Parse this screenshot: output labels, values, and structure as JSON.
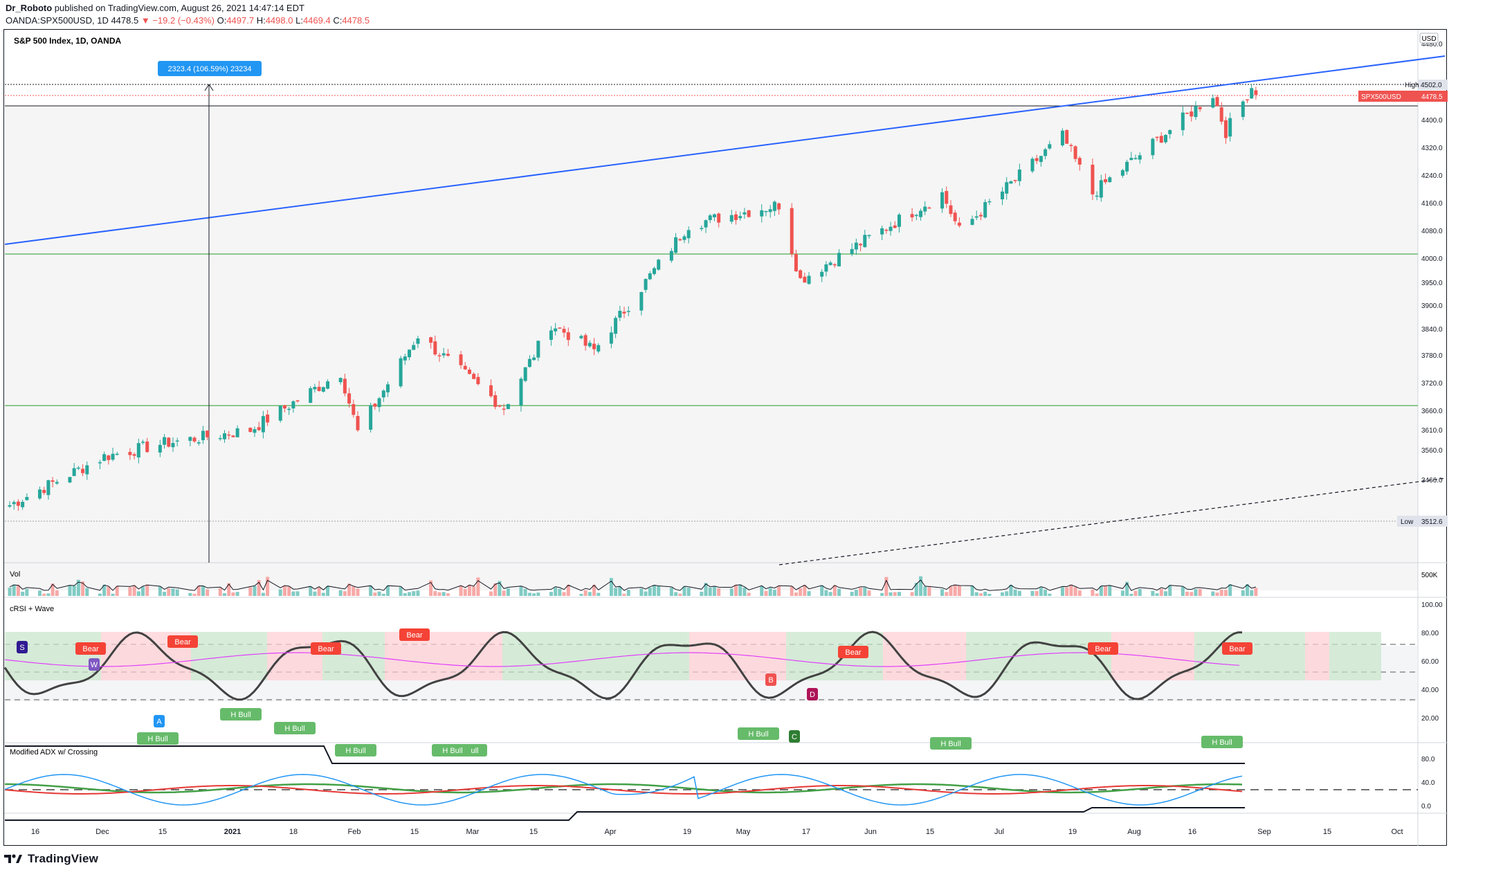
{
  "header": {
    "author": "Dr_Roboto",
    "published": "published on TradingView.com, August 26, 2021 14:47:14 EDT",
    "symbol_line": "OANDA:SPX500USD, 1D 4478.5",
    "change": "▼ −19.2 (−0.43%)",
    "ohlc": {
      "O": "4497.7",
      "H": "4498.0",
      "L": "4469.4",
      "C": "4478.5"
    }
  },
  "chart": {
    "title": "S&P 500 Index, 1D, OANDA",
    "currency": "USD",
    "measure_label": "2323.4 (106.59%) 23234",
    "price_ticks": [
      "4480.0",
      "4400.0",
      "4320.0",
      "4240.0",
      "4160.0",
      "4080.0",
      "4000.0",
      "3950.0",
      "3900.0",
      "3840.0",
      "3780.0",
      "3720.0",
      "3660.0",
      "3610.0",
      "3560.0",
      "3466.0"
    ],
    "high_label": {
      "name": "High",
      "value": "4502.0"
    },
    "low_label": {
      "name": "Low",
      "value": "3512.6"
    },
    "symbol_tag": {
      "name": "SPX500USD",
      "value": "4478.5"
    },
    "vol_label": "Vol",
    "vol_tick": "500K",
    "rsi_label": "cRSI + Wave",
    "rsi_ticks": [
      "100.00",
      "80.00",
      "60.00",
      "40.00",
      "20.00"
    ],
    "adx_label": "Modified ADX w/ Crossing",
    "adx_ticks": [
      "80.0",
      "40.0",
      "0.0"
    ],
    "x_ticks": [
      "16",
      "Dec",
      "15",
      "2021",
      "18",
      "Feb",
      "15",
      "Mar",
      "15",
      "Apr",
      "19",
      "May",
      "17",
      "Jun",
      "15",
      "Jul",
      "19",
      "Aug",
      "16",
      "Sep",
      "15",
      "Oct"
    ],
    "signals": [
      {
        "text": "Bear",
        "type": "bear"
      },
      {
        "text": "Bear",
        "type": "bear"
      },
      {
        "text": "Bear",
        "type": "bear"
      },
      {
        "text": "Bear",
        "type": "bear"
      },
      {
        "text": "Bear",
        "type": "bear"
      },
      {
        "text": "Bear",
        "type": "bear"
      },
      {
        "text": "Bear",
        "type": "bear"
      },
      {
        "text": "H Bull",
        "type": "hbull"
      },
      {
        "text": "H Bull",
        "type": "hbull"
      },
      {
        "text": "H Bull",
        "type": "hbull"
      },
      {
        "text": "H Bull",
        "type": "hbull"
      },
      {
        "text": "H Bull",
        "type": "hbull"
      },
      {
        "text": "ull",
        "type": "hbull"
      },
      {
        "text": "H Bull",
        "type": "hbull"
      },
      {
        "text": "H Bull",
        "type": "hbull"
      },
      {
        "text": "H Bull",
        "type": "hbull"
      },
      {
        "text": "S",
        "type": "s"
      },
      {
        "text": "W",
        "type": "w"
      },
      {
        "text": "A",
        "type": "a"
      },
      {
        "text": "B",
        "type": "b"
      },
      {
        "text": "C",
        "type": "c"
      },
      {
        "text": "D",
        "type": "d"
      }
    ],
    "colors": {
      "up": "#26a69a",
      "down": "#ef5350",
      "trend": "#2962ff",
      "support": "#4caf50",
      "bear": "#f44336",
      "hbull": "#66bb6a",
      "s": "#311b92",
      "w": "#7e57c2",
      "a": "#2196f3"
    }
  },
  "chart_data": {
    "type": "candlestick",
    "title": "S&P 500 Index, 1D, OANDA",
    "ylim": [
      3466,
      4502
    ],
    "high": 4502.0,
    "low": 3512.6,
    "last": 4478.5,
    "horizontal_levels": [
      4502.0,
      4478.5,
      4450.0,
      4085.0,
      3750.0,
      3512.6
    ],
    "series": [
      {
        "name": "close",
        "start": "2020-11-09",
        "end": "2021-08-26",
        "key_points": [
          {
            "date": "2020-11-09",
            "value": 3550
          },
          {
            "date": "2020-12-01",
            "value": 3660
          },
          {
            "date": "2020-12-15",
            "value": 3690
          },
          {
            "date": "2021-01-04",
            "value": 3720
          },
          {
            "date": "2021-01-25",
            "value": 3850
          },
          {
            "date": "2021-01-29",
            "value": 3715
          },
          {
            "date": "2021-02-12",
            "value": 3935
          },
          {
            "date": "2021-03-04",
            "value": 3770
          },
          {
            "date": "2021-03-15",
            "value": 3960
          },
          {
            "date": "2021-03-25",
            "value": 3900
          },
          {
            "date": "2021-04-16",
            "value": 4185
          },
          {
            "date": "2021-05-07",
            "value": 4230
          },
          {
            "date": "2021-05-12",
            "value": 4060
          },
          {
            "date": "2021-06-14",
            "value": 4255
          },
          {
            "date": "2021-06-18",
            "value": 4170
          },
          {
            "date": "2021-07-12",
            "value": 4385
          },
          {
            "date": "2021-07-19",
            "value": 4255
          },
          {
            "date": "2021-08-16",
            "value": 4480
          },
          {
            "date": "2021-08-19",
            "value": 4395
          },
          {
            "date": "2021-08-25",
            "value": 4497
          },
          {
            "date": "2021-08-26",
            "value": 4478.5
          }
        ]
      }
    ]
  }
}
